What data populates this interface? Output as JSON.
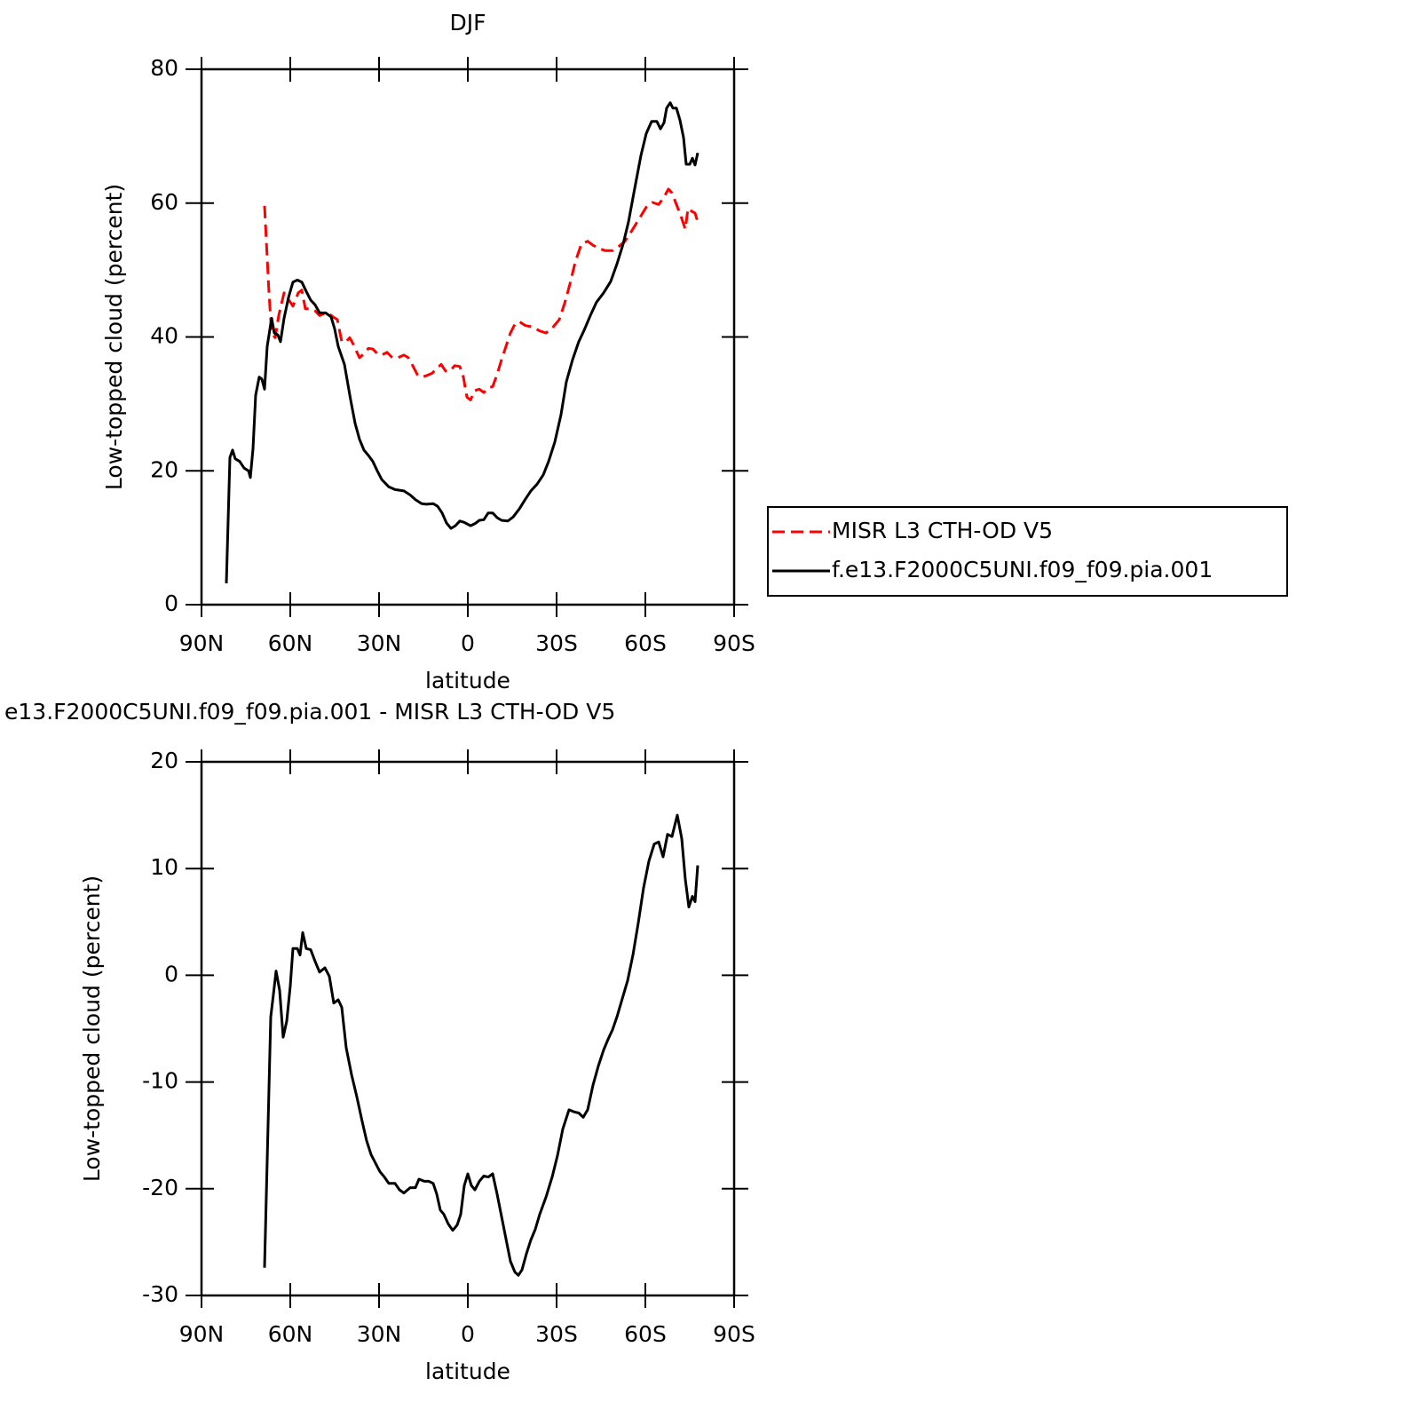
{
  "chart_data": [
    {
      "type": "line",
      "title": "DJF",
      "xlabel": "latitude",
      "ylabel": "Low-topped cloud (percent)",
      "xlim": [
        90,
        -90
      ],
      "xticks": [
        {
          "value": 90,
          "label": "90N"
        },
        {
          "value": 60,
          "label": "60N"
        },
        {
          "value": 30,
          "label": "30N"
        },
        0,
        {
          "value": -30,
          "label": "30S"
        },
        {
          "value": -60,
          "label": "60S"
        },
        {
          "value": -90,
          "label": "90S"
        }
      ],
      "ylim": [
        0,
        80
      ],
      "yticks": [
        0,
        20,
        40,
        60,
        80
      ],
      "legend": "right",
      "series": [
        {
          "name": "MISR L3 CTH-OD V5",
          "color": "#ff0000",
          "dash": true,
          "x": [
            68.7,
            67.2,
            66.3,
            65.1,
            63.9,
            62.1,
            60.6,
            59.1,
            57.3,
            56.1,
            54.9,
            53.1,
            51.6,
            50.1,
            48.6,
            47.1,
            45.6,
            44.1,
            42.6,
            41.1,
            39.9,
            38.7,
            36.6,
            35.1,
            33.6,
            32.1,
            30.6,
            29.1,
            27.3,
            25.5,
            23.7,
            21.6,
            20.1,
            18.6,
            17.1,
            15.6,
            14.1,
            12.0,
            10.5,
            9.0,
            7.5,
            6.0,
            4.5,
            2.7,
            1.5,
            0.3,
            -0.9,
            -2.4,
            -3.9,
            -5.4,
            -6.9,
            -8.4,
            -9.9,
            -11.4,
            -12.9,
            -14.4,
            -15.9,
            -17.4,
            -19.5,
            -21.9,
            -24.3,
            -26.4,
            -28.5,
            -30.9,
            -32.7,
            -34.5,
            -36.3,
            -38.4,
            -40.5,
            -42.3,
            -44.4,
            -46.5,
            -48.9,
            -51.0,
            -53.1,
            -54.9,
            -56.7,
            -58.5,
            -60.3,
            -62.4,
            -64.5,
            -66.3,
            -67.8,
            -69.0,
            -70.5,
            -72.0,
            -73.5,
            -74.4,
            -75.6,
            -76.8,
            -77.7
          ],
          "values": [
            59.6,
            46.6,
            40.6,
            39.9,
            43.2,
            46.6,
            45.6,
            44.6,
            46.6,
            47.0,
            44.2,
            44.2,
            43.9,
            43.2,
            43.5,
            43.6,
            43.0,
            42.6,
            39.3,
            39.3,
            39.9,
            38.9,
            36.9,
            37.5,
            38.3,
            38.2,
            37.5,
            37.3,
            37.7,
            36.9,
            36.9,
            37.3,
            36.9,
            35.7,
            34.4,
            34.0,
            34.2,
            34.6,
            35.3,
            35.9,
            34.9,
            34.9,
            35.7,
            35.6,
            34.0,
            31.0,
            30.6,
            32.0,
            32.2,
            31.7,
            32.4,
            32.6,
            34.4,
            36.6,
            38.6,
            40.6,
            41.9,
            42.3,
            41.7,
            41.5,
            40.9,
            40.6,
            41.3,
            42.6,
            45.0,
            47.9,
            51.2,
            53.9,
            54.3,
            53.7,
            53.2,
            52.9,
            52.9,
            53.5,
            54.3,
            55.5,
            56.8,
            58.1,
            59.4,
            60.1,
            59.8,
            60.9,
            62.1,
            61.5,
            59.8,
            58.1,
            56.1,
            59.2,
            58.8,
            58.5,
            57.2
          ]
        },
        {
          "name": "f.e13.F2000C5UNI.f09_f09.pia.001",
          "color": "#000000",
          "dash": false,
          "x": [
            81.6,
            80.4,
            79.5,
            78.6,
            77.1,
            75.6,
            74.1,
            73.5,
            72.6,
            71.7,
            70.5,
            69.6,
            68.7,
            67.8,
            66.3,
            65.4,
            64.2,
            63.3,
            62.1,
            60.6,
            59.1,
            57.6,
            56.1,
            54.6,
            53.1,
            51.6,
            50.1,
            48.0,
            46.2,
            45.0,
            43.8,
            41.7,
            39.6,
            38.1,
            36.6,
            35.1,
            33.6,
            32.1,
            30.6,
            29.1,
            26.7,
            24.6,
            21.6,
            19.5,
            17.7,
            15.6,
            14.1,
            11.7,
            10.2,
            8.7,
            7.2,
            5.7,
            4.2,
            2.7,
            1.2,
            -0.9,
            -2.4,
            -3.9,
            -5.4,
            -6.9,
            -8.4,
            -9.9,
            -11.4,
            -13.5,
            -15.3,
            -17.4,
            -19.5,
            -21.3,
            -23.4,
            -25.5,
            -27.3,
            -29.4,
            -31.5,
            -33.3,
            -35.4,
            -37.5,
            -39.3,
            -41.4,
            -43.5,
            -45.9,
            -48.3,
            -50.4,
            -52.5,
            -54.3,
            -56.4,
            -58.5,
            -60.3,
            -62.1,
            -63.9,
            -65.1,
            -66.3,
            -67.2,
            -68.4,
            -69.3,
            -70.5,
            -71.7,
            -72.9,
            -73.8,
            -75.0,
            -75.9,
            -76.8,
            -77.7
          ],
          "values": [
            3.2,
            22.0,
            23.1,
            21.8,
            21.4,
            20.4,
            20.0,
            19.0,
            23.3,
            31.3,
            34.0,
            33.7,
            32.2,
            38.6,
            42.8,
            40.6,
            40.3,
            39.3,
            42.8,
            45.9,
            48.2,
            48.5,
            48.2,
            46.8,
            45.5,
            44.8,
            43.6,
            43.6,
            43.0,
            41.2,
            38.6,
            35.9,
            30.6,
            27.1,
            24.7,
            23.1,
            22.3,
            21.4,
            20.0,
            18.7,
            17.6,
            17.2,
            17.0,
            16.4,
            15.7,
            15.1,
            15.0,
            15.1,
            14.7,
            13.7,
            12.2,
            11.4,
            11.8,
            12.5,
            12.3,
            11.8,
            12.1,
            12.6,
            12.7,
            13.7,
            13.7,
            13.0,
            12.6,
            12.5,
            13.1,
            14.3,
            15.8,
            17.0,
            18.0,
            19.4,
            21.4,
            24.3,
            28.4,
            33.3,
            36.6,
            39.3,
            41.0,
            43.2,
            45.2,
            46.6,
            48.3,
            50.9,
            53.9,
            57.2,
            62.2,
            67.1,
            70.4,
            72.2,
            72.2,
            71.1,
            72.0,
            74.2,
            75.0,
            74.2,
            74.2,
            72.4,
            69.8,
            65.8,
            65.8,
            66.7,
            65.7,
            67.5
          ]
        }
      ]
    },
    {
      "type": "line",
      "title": "e13.F2000C5UNI.f09_f09.pia.001 - MISR L3 CTH-OD V5",
      "xlabel": "latitude",
      "ylabel": "Low-topped cloud (percent)",
      "xlim": [
        90,
        -90
      ],
      "xticks": [
        {
          "value": 90,
          "label": "90N"
        },
        {
          "value": 60,
          "label": "60N"
        },
        {
          "value": 30,
          "label": "30N"
        },
        0,
        {
          "value": -30,
          "label": "30S"
        },
        {
          "value": -60,
          "label": "60S"
        },
        {
          "value": -90,
          "label": "90S"
        }
      ],
      "ylim": [
        -30,
        20
      ],
      "yticks": [
        -30,
        -20,
        -10,
        0,
        10,
        20
      ],
      "series": [
        {
          "color": "#000000",
          "dash": false,
          "x": [
            68.7,
            66.6,
            65.7,
            64.8,
            63.6,
            62.4,
            61.2,
            60.0,
            59.1,
            57.6,
            56.7,
            55.8,
            54.6,
            53.1,
            51.6,
            50.1,
            48.3,
            46.8,
            45.3,
            43.8,
            42.6,
            41.1,
            39.3,
            37.5,
            35.7,
            34.2,
            32.7,
            31.2,
            29.7,
            28.2,
            26.7,
            24.6,
            23.1,
            21.6,
            19.5,
            17.7,
            16.5,
            14.7,
            13.2,
            11.7,
            10.5,
            9.3,
            8.1,
            6.6,
            5.1,
            3.6,
            2.4,
            1.2,
            0.0,
            -1.2,
            -2.4,
            -3.9,
            -5.4,
            -6.9,
            -8.4,
            -9.9,
            -11.4,
            -12.9,
            -14.4,
            -15.9,
            -17.1,
            -18.3,
            -19.8,
            -21.3,
            -22.8,
            -24.3,
            -26.4,
            -28.5,
            -30.3,
            -32.1,
            -34.2,
            -36.0,
            -37.5,
            -39.0,
            -40.5,
            -42.3,
            -44.1,
            -45.9,
            -47.4,
            -48.9,
            -50.4,
            -52.2,
            -54.0,
            -55.8,
            -57.6,
            -59.4,
            -61.2,
            -63.0,
            -64.5,
            -66.0,
            -67.5,
            -69.0,
            -70.8,
            -72.3,
            -73.5,
            -74.7,
            -75.9,
            -76.8,
            -77.7
          ],
          "values": [
            -27.4,
            -3.9,
            -1.8,
            0.4,
            -1.4,
            -5.8,
            -4.3,
            -1.0,
            2.5,
            2.5,
            1.9,
            4.0,
            2.5,
            2.4,
            1.3,
            0.3,
            0.7,
            -0.1,
            -2.6,
            -2.3,
            -3.0,
            -6.8,
            -9.3,
            -11.4,
            -13.7,
            -15.5,
            -16.8,
            -17.6,
            -18.4,
            -18.9,
            -19.5,
            -19.5,
            -20.1,
            -20.4,
            -19.9,
            -19.9,
            -19.1,
            -19.3,
            -19.3,
            -19.5,
            -20.5,
            -22.0,
            -22.4,
            -23.3,
            -23.9,
            -23.4,
            -22.4,
            -19.7,
            -18.6,
            -19.7,
            -20.1,
            -19.3,
            -18.8,
            -18.9,
            -18.6,
            -20.5,
            -22.6,
            -24.7,
            -26.8,
            -27.8,
            -28.1,
            -27.6,
            -26.1,
            -24.8,
            -23.8,
            -22.4,
            -20.8,
            -18.9,
            -16.9,
            -14.4,
            -12.6,
            -12.8,
            -12.9,
            -13.3,
            -12.6,
            -10.3,
            -8.5,
            -7.0,
            -6.0,
            -5.1,
            -3.9,
            -2.2,
            -0.5,
            1.9,
            4.9,
            8.2,
            10.7,
            12.3,
            12.5,
            11.1,
            13.2,
            13.0,
            15.0,
            12.8,
            9.0,
            6.4,
            7.4,
            6.9,
            10.3
          ]
        }
      ]
    }
  ]
}
